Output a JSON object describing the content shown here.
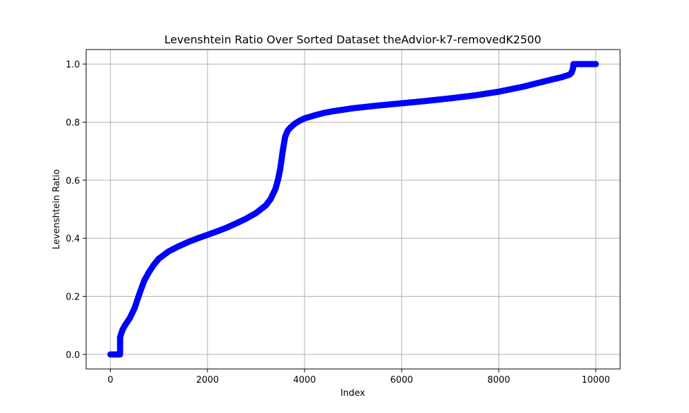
{
  "chart_data": {
    "type": "scatter",
    "title": "Levenshtein Ratio Over Sorted Dataset theAdvior-k7-removedK2500",
    "xlabel": "Index",
    "ylabel": "Levenshtein Ratio",
    "xlim": [
      -500,
      10500
    ],
    "ylim": [
      -0.05,
      1.05
    ],
    "x_ticks": [
      0,
      2000,
      4000,
      6000,
      8000,
      10000
    ],
    "x_tick_labels": [
      "0",
      "2000",
      "4000",
      "6000",
      "8000",
      "10000"
    ],
    "y_ticks": [
      0.0,
      0.2,
      0.4,
      0.6,
      0.8,
      1.0
    ],
    "y_tick_labels": [
      "0.0",
      "0.2",
      "0.4",
      "0.6",
      "0.8",
      "1.0"
    ],
    "grid": true,
    "legend": "none",
    "colors": {
      "points": "#0000ff",
      "grid": "#b0b0b0"
    },
    "series": [
      {
        "x": [
          0,
          100,
          199,
          200,
          250,
          300,
          400,
          500,
          600,
          700,
          800,
          900,
          1000,
          1200,
          1400,
          1600,
          1800,
          2000,
          2200,
          2400,
          2600,
          2800,
          3000,
          3200,
          3300,
          3400,
          3450,
          3500,
          3550,
          3600,
          3650,
          3700,
          3800,
          3900,
          4000,
          4200,
          4400,
          4600,
          4800,
          5000,
          5500,
          6000,
          6500,
          7000,
          7500,
          8000,
          8500,
          9000,
          9300,
          9450,
          9500,
          9530,
          9540,
          9600,
          9800,
          10000
        ],
        "y": [
          0.0,
          0.0,
          0.0,
          0.06,
          0.085,
          0.1,
          0.125,
          0.16,
          0.21,
          0.255,
          0.285,
          0.31,
          0.33,
          0.355,
          0.372,
          0.387,
          0.4,
          0.412,
          0.424,
          0.437,
          0.452,
          0.468,
          0.487,
          0.513,
          0.535,
          0.57,
          0.6,
          0.64,
          0.7,
          0.75,
          0.77,
          0.78,
          0.795,
          0.805,
          0.813,
          0.823,
          0.832,
          0.838,
          0.843,
          0.848,
          0.857,
          0.865,
          0.873,
          0.882,
          0.892,
          0.905,
          0.922,
          0.943,
          0.955,
          0.963,
          0.97,
          0.985,
          1.0,
          1.0,
          1.0,
          1.0
        ]
      }
    ]
  }
}
